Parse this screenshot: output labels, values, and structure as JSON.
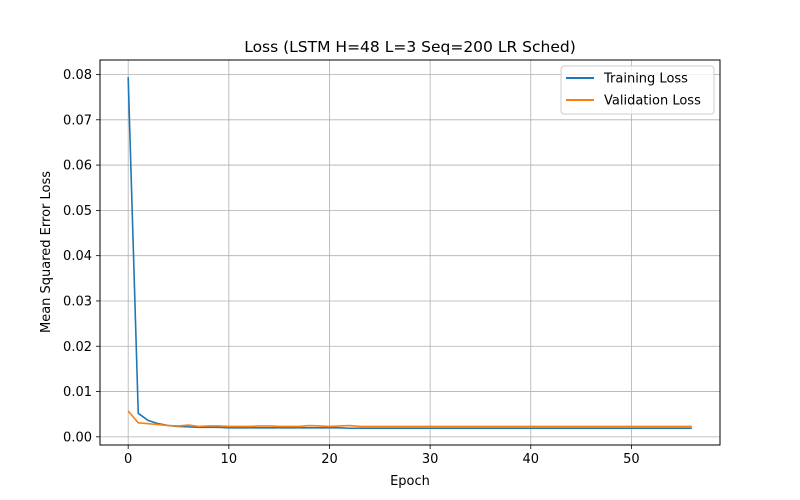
{
  "chart_data": {
    "type": "line",
    "title": "Loss (LSTM H=48 L=3 Seq=200 LR Sched)",
    "xlabel": "Epoch",
    "ylabel": "Mean Squared Error Loss",
    "xlim": [
      -2.8,
      58.8
    ],
    "ylim": [
      -0.0018,
      0.0832
    ],
    "xticks": [
      0,
      10,
      20,
      30,
      40,
      50
    ],
    "yticks": [
      "0.00",
      "0.01",
      "0.02",
      "0.03",
      "0.04",
      "0.05",
      "0.06",
      "0.07",
      "0.08"
    ],
    "yticks_values": [
      0,
      0.01,
      0.02,
      0.03,
      0.04,
      0.05,
      0.06,
      0.07,
      0.08
    ],
    "grid": true,
    "legend_position": "top-right",
    "series": [
      {
        "name": "Training Loss",
        "color": "#1f77b4",
        "x": [
          0,
          1,
          2,
          3,
          4,
          5,
          6,
          7,
          8,
          9,
          10,
          11,
          12,
          13,
          14,
          15,
          16,
          17,
          18,
          19,
          20,
          21,
          22,
          23,
          24,
          25,
          26,
          27,
          28,
          29,
          30,
          31,
          32,
          33,
          34,
          35,
          36,
          37,
          38,
          39,
          40,
          41,
          42,
          43,
          44,
          45,
          46,
          47,
          48,
          49,
          50,
          51,
          52,
          53,
          54,
          55,
          56
        ],
        "values": [
          0.0794,
          0.0052,
          0.0036,
          0.0029,
          0.0025,
          0.0023,
          0.0022,
          0.0021,
          0.0021,
          0.0021,
          0.002,
          0.002,
          0.002,
          0.002,
          0.002,
          0.002,
          0.002,
          0.002,
          0.002,
          0.002,
          0.002,
          0.002,
          0.0019,
          0.0019,
          0.0019,
          0.0019,
          0.0019,
          0.0019,
          0.0019,
          0.0019,
          0.0019,
          0.0019,
          0.0019,
          0.0019,
          0.0019,
          0.0019,
          0.0019,
          0.0019,
          0.0019,
          0.0019,
          0.0019,
          0.0019,
          0.0019,
          0.0019,
          0.0019,
          0.0019,
          0.0019,
          0.0019,
          0.0019,
          0.0019,
          0.0019,
          0.0019,
          0.0019,
          0.0019,
          0.0019,
          0.0019,
          0.0019
        ]
      },
      {
        "name": "Validation Loss",
        "color": "#ff7f0e",
        "x": [
          0,
          1,
          2,
          3,
          4,
          5,
          6,
          7,
          8,
          9,
          10,
          11,
          12,
          13,
          14,
          15,
          16,
          17,
          18,
          19,
          20,
          21,
          22,
          23,
          24,
          25,
          26,
          27,
          28,
          29,
          30,
          31,
          32,
          33,
          34,
          35,
          36,
          37,
          38,
          39,
          40,
          41,
          42,
          43,
          44,
          45,
          46,
          47,
          48,
          49,
          50,
          51,
          52,
          53,
          54,
          55,
          56
        ],
        "values": [
          0.0057,
          0.0031,
          0.0029,
          0.0027,
          0.0025,
          0.0024,
          0.0026,
          0.0023,
          0.0024,
          0.0024,
          0.0023,
          0.0023,
          0.0023,
          0.0024,
          0.0024,
          0.0023,
          0.0023,
          0.0023,
          0.0025,
          0.0024,
          0.0023,
          0.0024,
          0.0025,
          0.0023,
          0.0023,
          0.0023,
          0.0023,
          0.0023,
          0.0023,
          0.0023,
          0.0023,
          0.0023,
          0.0023,
          0.0023,
          0.0023,
          0.0023,
          0.0023,
          0.0023,
          0.0023,
          0.0023,
          0.0023,
          0.0023,
          0.0023,
          0.0023,
          0.0023,
          0.0023,
          0.0023,
          0.0023,
          0.0023,
          0.0023,
          0.0023,
          0.0023,
          0.0023,
          0.0023,
          0.0023,
          0.0023,
          0.0023
        ]
      }
    ]
  }
}
